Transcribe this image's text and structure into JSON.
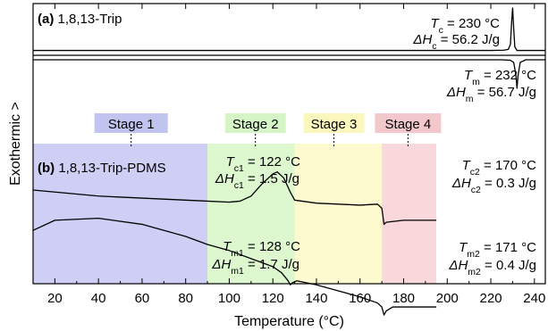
{
  "chart_data": {
    "type": "line",
    "xlabel": "Temperature (°C)",
    "ylabel": "Exothermic >",
    "xlim": [
      10,
      245
    ],
    "x_ticks": [
      20,
      40,
      60,
      80,
      100,
      120,
      140,
      160,
      180,
      200,
      220,
      240
    ],
    "x_ticks_labeled": [
      20,
      40,
      60,
      80,
      100,
      120,
      140,
      160,
      180,
      200,
      220,
      240
    ],
    "panels": [
      {
        "label": "(a)",
        "name": "1,8,13-Trip",
        "series": [
          {
            "role": "cooling",
            "x": [
              10,
              50,
              100,
              150,
              200,
              220,
              226,
              228,
              229,
              229.5,
              230,
              230.5,
              231,
              232,
              235,
              245
            ],
            "y": [
              0.18,
              0.18,
              0.18,
              0.18,
              0.18,
              0.18,
              0.185,
              0.2,
              0.3,
              0.7,
              1.0,
              0.6,
              0.25,
              0.18,
              0.18,
              0.18
            ]
          },
          {
            "role": "heating",
            "x": [
              10,
              50,
              100,
              150,
              200,
              225,
              229,
              230.5,
              231.5,
              232,
              232.5,
              233.5,
              236,
              245
            ],
            "y": [
              0.0,
              0.0,
              0.0,
              0.0,
              0.0,
              0.0,
              -0.01,
              -0.05,
              -0.3,
              -0.55,
              -0.3,
              -0.05,
              0.0,
              0.0
            ]
          }
        ],
        "annotations": [
          {
            "sym": "T",
            "sub": "c",
            "text": " = 230 °C"
          },
          {
            "sym": "ΔH",
            "sub": "c",
            "text": " = 56.2 J/g"
          },
          {
            "sym": "T",
            "sub": "m",
            "text": " = 232 °C"
          },
          {
            "sym": "ΔH",
            "sub": "m",
            "text": " = 56.7 J/g"
          }
        ]
      },
      {
        "label": "(b)",
        "name": "1,8,13-Trip-PDMS",
        "stages": [
          {
            "label": "Stage 1",
            "x0": 10,
            "x1": 90,
            "color": "#cfcff5",
            "label_color": "#c2c4f0"
          },
          {
            "label": "Stage 2",
            "x0": 90,
            "x1": 130,
            "color": "#ddf8cf",
            "label_color": "#d6f5c6"
          },
          {
            "label": "Stage 3",
            "x0": 130,
            "x1": 170,
            "color": "#fdfad0",
            "label_color": "#fbf7bd"
          },
          {
            "label": "Stage 4",
            "x0": 170,
            "x1": 195,
            "color": "#f8d8db",
            "label_color": "#f3c8cc"
          }
        ],
        "series": [
          {
            "role": "cooling",
            "x": [
              10,
              20,
              40,
              60,
              80,
              90,
              100,
              105,
              110,
              115,
              120,
              122,
              125,
              128,
              130,
              140,
              150,
              160,
              168,
              170,
              171,
              172,
              180,
              190,
              195
            ],
            "y": [
              0.5,
              0.49,
              0.47,
              0.46,
              0.45,
              0.445,
              0.44,
              0.445,
              0.47,
              0.53,
              0.58,
              0.59,
              0.56,
              0.49,
              0.45,
              0.435,
              0.43,
              0.425,
              0.43,
              0.41,
              0.33,
              0.34,
              0.35,
              0.35,
              0.35
            ]
          },
          {
            "role": "heating",
            "x": [
              10,
              20,
              40,
              60,
              80,
              90,
              100,
              110,
              120,
              124,
              127,
              128,
              129,
              131,
              140,
              150,
              160,
              168,
              170,
              171,
              172,
              175,
              180,
              190,
              195
            ],
            "y": [
              0.3,
              0.35,
              0.36,
              0.33,
              0.27,
              0.23,
              0.2,
              0.16,
              0.12,
              0.09,
              0.05,
              0.03,
              0.04,
              0.05,
              0.03,
              0.0,
              -0.03,
              -0.06,
              -0.08,
              -0.12,
              -0.1,
              -0.08,
              -0.08,
              -0.08,
              -0.08
            ]
          }
        ],
        "annotations": [
          {
            "sym": "T",
            "sub": "c1",
            "text": " = 122 °C"
          },
          {
            "sym": "ΔH",
            "sub": "c1",
            "text": " = 1.5 J/g"
          },
          {
            "sym": "T",
            "sub": "c2",
            "text": " = 170 °C"
          },
          {
            "sym": "ΔH",
            "sub": "c2",
            "text": " = 0.3 J/g"
          },
          {
            "sym": "T",
            "sub": "m1",
            "text": " = 128 °C"
          },
          {
            "sym": "ΔH",
            "sub": "m1",
            "text": " = 1.7 J/g"
          },
          {
            "sym": "T",
            "sub": "m2",
            "text": " = 171 °C"
          },
          {
            "sym": "ΔH",
            "sub": "m2",
            "text": " = 0.4 J/g"
          }
        ]
      }
    ]
  }
}
